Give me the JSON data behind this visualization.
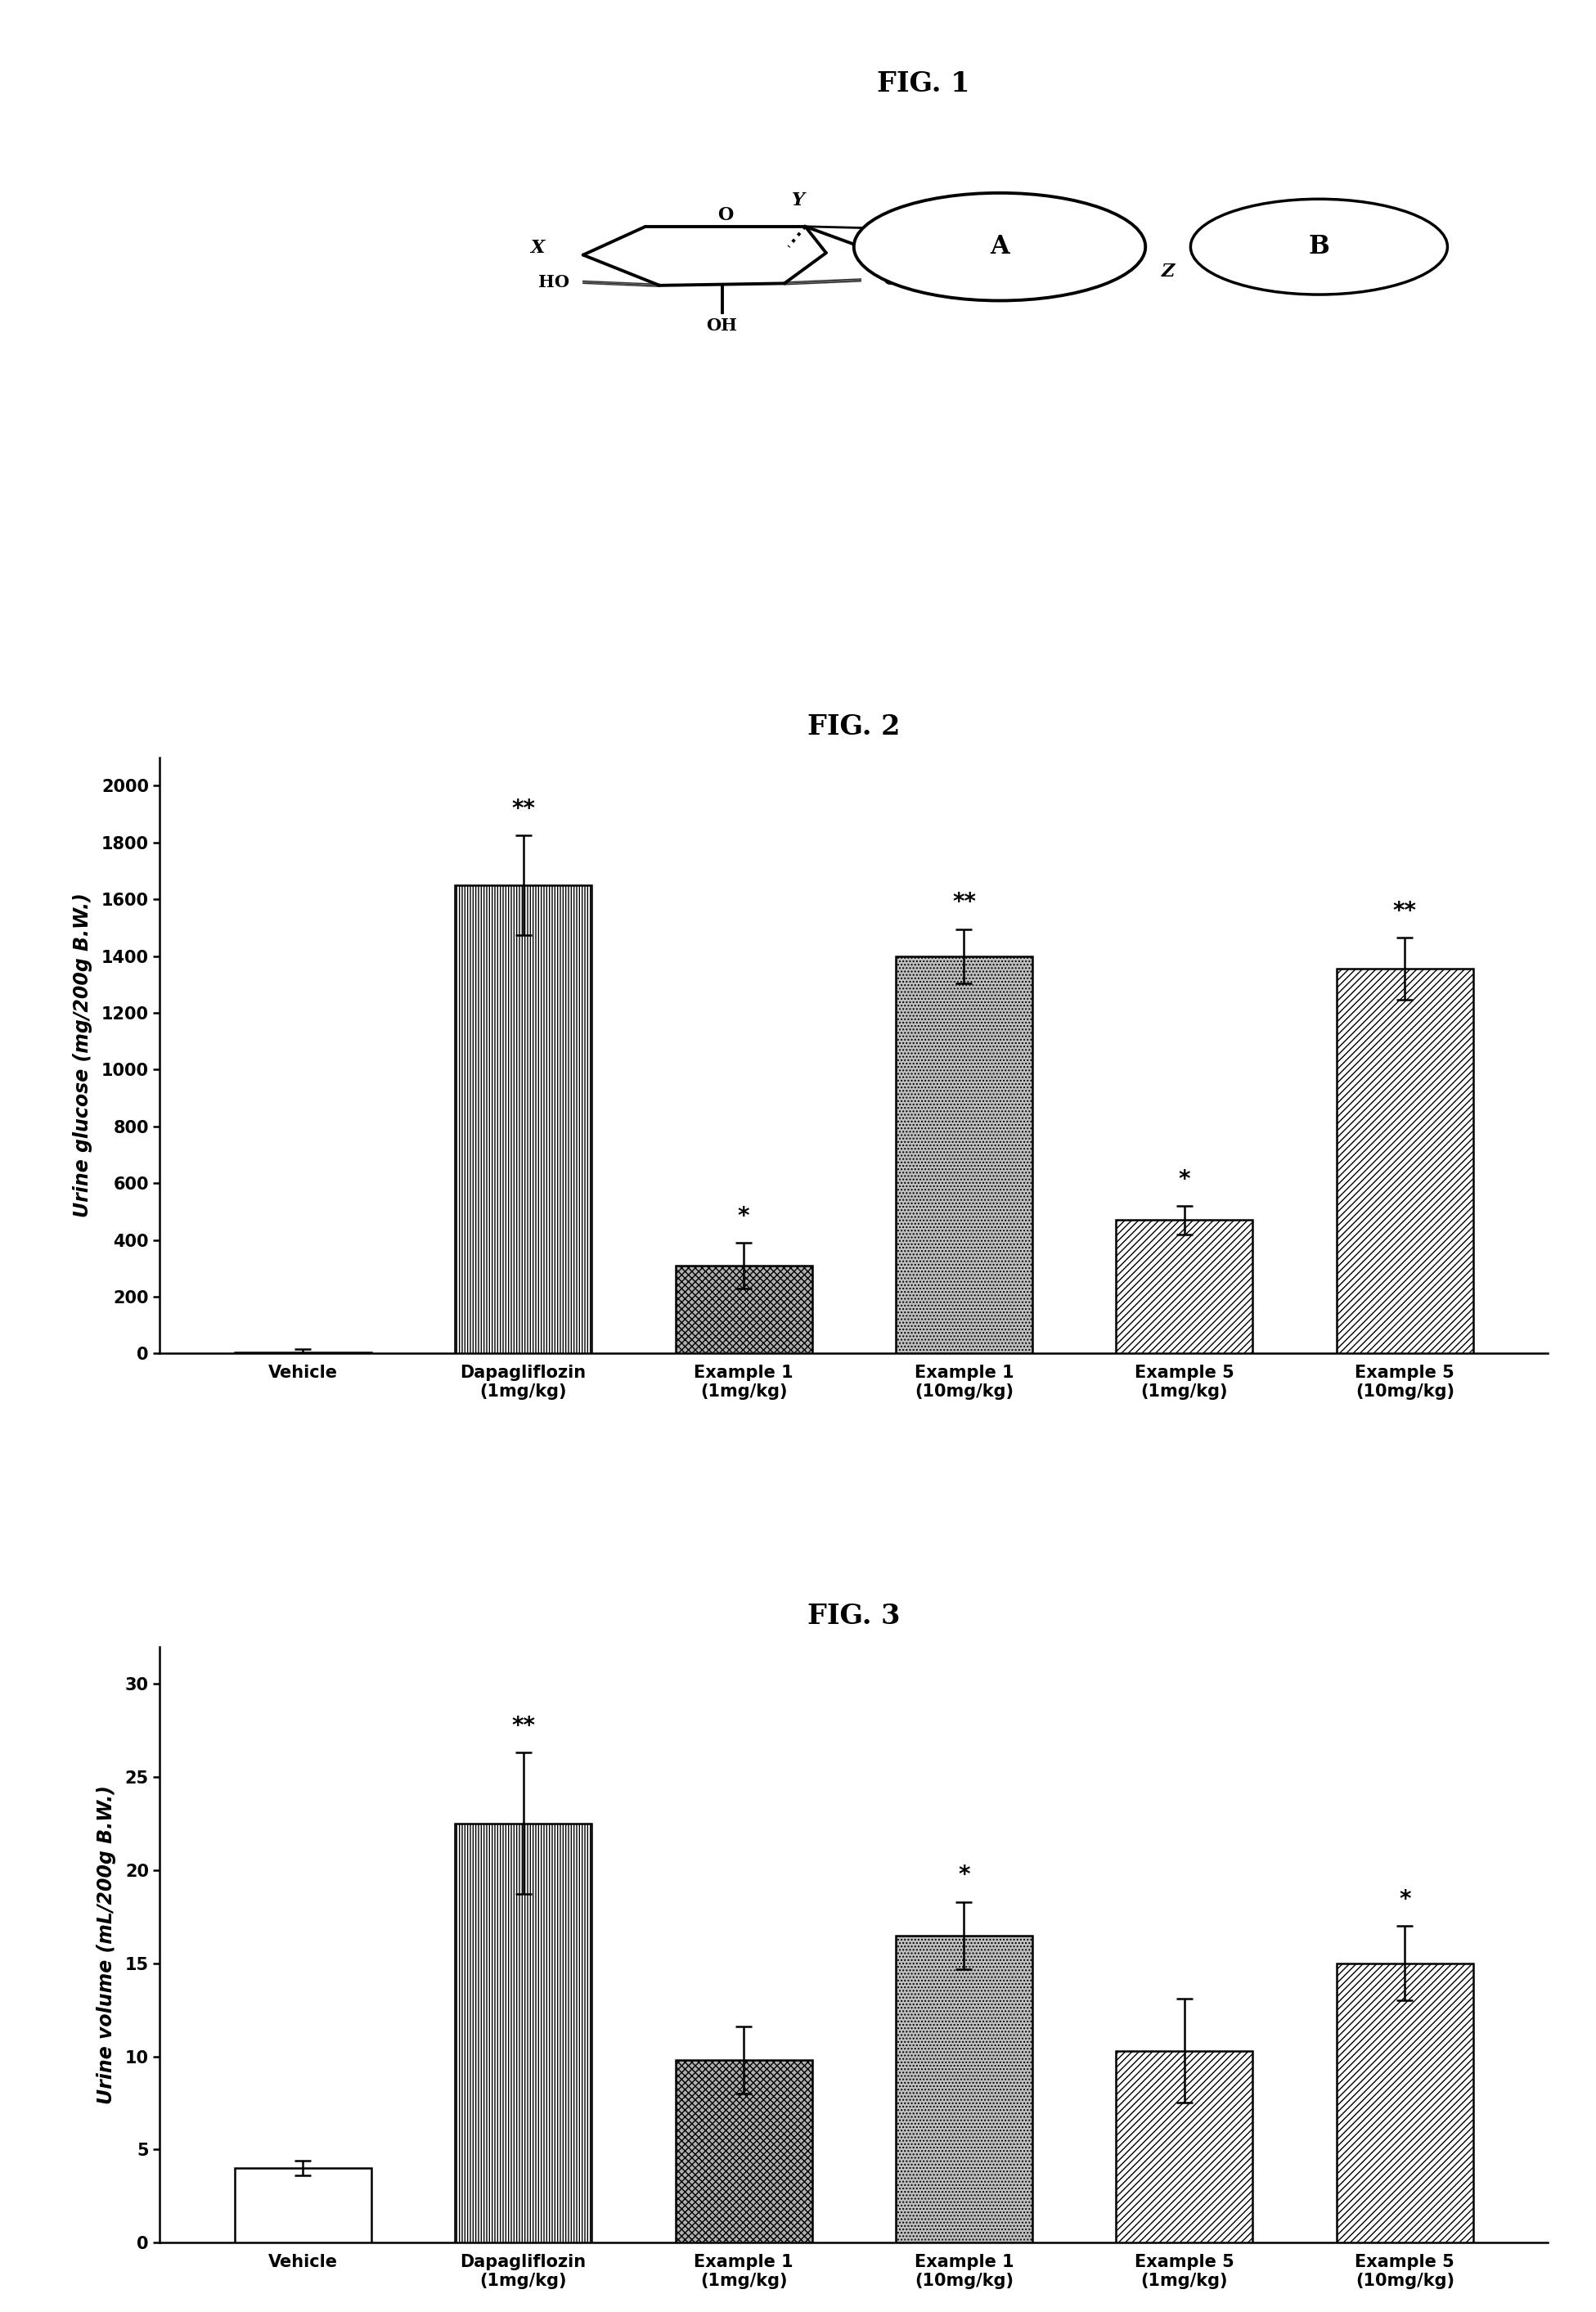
{
  "fig1_title": "FIG. 1",
  "fig2_title": "FIG. 2",
  "fig3_title": "FIG. 3",
  "fig2_categories": [
    "Vehicle",
    "Dapagliflozin\n(1mg/kg)",
    "Example 1\n(1mg/kg)",
    "Example 1\n(10mg/kg)",
    "Example 5\n(1mg/kg)",
    "Example 5\n(10mg/kg)"
  ],
  "fig2_values": [
    5,
    1650,
    310,
    1400,
    470,
    1355
  ],
  "fig2_errors": [
    10,
    175,
    80,
    95,
    50,
    110
  ],
  "fig2_ylabel": "Urine glucose (mg/200g B.W.)",
  "fig2_ylim": [
    0,
    2100
  ],
  "fig2_yticks": [
    0,
    200,
    400,
    600,
    800,
    1000,
    1200,
    1400,
    1600,
    1800,
    2000
  ],
  "fig2_significance": [
    "",
    "**",
    "*",
    "**",
    "*",
    "**"
  ],
  "fig3_categories": [
    "Vehicle",
    "Dapagliflozin\n(1mg/kg)",
    "Example 1\n(1mg/kg)",
    "Example 1\n(10mg/kg)",
    "Example 5\n(1mg/kg)",
    "Example 5\n(10mg/kg)"
  ],
  "fig3_values": [
    4.0,
    22.5,
    9.8,
    16.5,
    10.3,
    15.0
  ],
  "fig3_errors": [
    0.4,
    3.8,
    1.8,
    1.8,
    2.8,
    2.0
  ],
  "fig3_ylabel": "Urine volume (mL/200g B.W.)",
  "fig3_ylim": [
    0,
    32
  ],
  "fig3_yticks": [
    0,
    5,
    10,
    15,
    20,
    25,
    30
  ],
  "fig3_significance": [
    "",
    "**",
    "",
    "*",
    "",
    "*"
  ],
  "background_color": "white",
  "title_fontsize": 24,
  "label_fontsize": 17,
  "tick_fontsize": 15,
  "sig_fontsize": 20,
  "cat_fontsize": 15
}
